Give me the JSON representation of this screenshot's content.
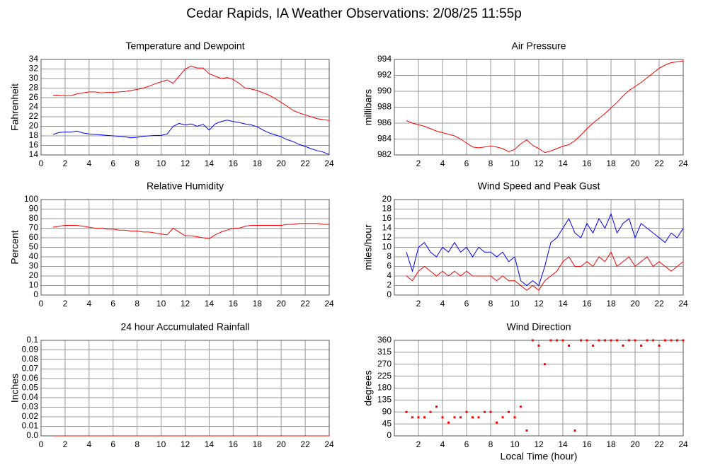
{
  "title": "Cedar Rapids, IA Weather Observations: 2/08/25 11:55p",
  "chart_data": [
    {
      "type": "line",
      "title": "Temperature and Dewpoint",
      "ylabel": "Fahrenheit",
      "x": [
        1,
        1.5,
        2,
        2.5,
        3,
        3.5,
        4,
        4.5,
        5,
        5.5,
        6,
        6.5,
        7,
        7.5,
        8,
        8.5,
        9,
        9.5,
        10,
        10.5,
        11,
        11.5,
        12,
        12.5,
        13,
        13.5,
        14,
        14.5,
        15,
        15.5,
        16,
        16.5,
        17,
        17.5,
        18,
        18.5,
        19,
        19.5,
        20,
        20.5,
        21,
        21.5,
        22,
        22.5,
        23,
        23.5,
        24
      ],
      "series": [
        {
          "color": "#ff0000",
          "values": [
            26.5,
            26.5,
            26.4,
            26.4,
            26.8,
            27.0,
            27.2,
            27.2,
            27.0,
            27.1,
            27.1,
            27.2,
            27.3,
            27.5,
            27.7,
            28.0,
            28.4,
            28.9,
            29.3,
            29.7,
            29.0,
            30.5,
            32.0,
            32.6,
            32.2,
            32.2,
            31.0,
            30.5,
            30.0,
            30.2,
            29.8,
            29.0,
            28.0,
            27.8,
            27.5,
            27.0,
            26.5,
            25.8,
            25.0,
            24.2,
            23.3,
            22.8,
            22.4,
            22.0,
            21.6,
            21.4,
            21.2
          ]
        },
        {
          "color": "#0000ff",
          "values": [
            18.3,
            18.7,
            18.8,
            18.8,
            19.0,
            18.6,
            18.4,
            18.3,
            18.2,
            18.1,
            18.0,
            17.9,
            17.8,
            17.6,
            17.7,
            17.9,
            18.0,
            18.1,
            18.1,
            18.4,
            20.0,
            20.6,
            20.3,
            20.5,
            20.0,
            20.4,
            19.2,
            20.5,
            21.0,
            21.3,
            21.0,
            20.8,
            20.5,
            20.3,
            19.9,
            19.2,
            18.6,
            18.2,
            17.8,
            17.2,
            16.8,
            16.2,
            15.8,
            15.3,
            14.9,
            14.6,
            14.1
          ]
        }
      ],
      "xlim": [
        0,
        24
      ],
      "xticks": [
        0,
        2,
        4,
        6,
        8,
        10,
        12,
        14,
        16,
        18,
        20,
        22,
        24
      ],
      "ylim": [
        14,
        34
      ],
      "yticks": [
        14,
        16,
        18,
        20,
        22,
        24,
        26,
        28,
        30,
        32,
        34
      ],
      "grid": true
    },
    {
      "type": "line",
      "title": "Air Pressure",
      "ylabel": "millibars",
      "x": [
        1,
        1.5,
        2,
        2.5,
        3,
        3.5,
        4,
        4.5,
        5,
        5.5,
        6,
        6.5,
        7,
        7.5,
        8,
        8.5,
        9,
        9.5,
        10,
        10.5,
        11,
        11.5,
        12,
        12.5,
        13,
        13.5,
        14,
        14.5,
        15,
        15.5,
        16,
        16.5,
        17,
        17.5,
        18,
        18.5,
        19,
        19.5,
        20,
        20.5,
        21,
        21.5,
        22,
        22.5,
        23,
        23.5,
        24
      ],
      "series": [
        {
          "color": "#ff0000",
          "values": [
            986.3,
            986.0,
            985.8,
            985.6,
            985.3,
            985.0,
            984.8,
            984.6,
            984.4,
            984.0,
            983.5,
            983.0,
            982.9,
            983.0,
            983.1,
            983.0,
            982.8,
            982.4,
            982.7,
            983.4,
            983.9,
            983.2,
            982.8,
            982.3,
            982.5,
            982.8,
            983.1,
            983.3,
            983.8,
            984.5,
            985.3,
            986.0,
            986.6,
            987.2,
            987.9,
            988.6,
            989.4,
            990.1,
            990.6,
            991.1,
            991.7,
            992.3,
            992.9,
            993.3,
            993.6,
            993.7,
            993.8
          ]
        }
      ],
      "xlim": [
        0,
        24
      ],
      "xticks": [
        2,
        4,
        6,
        8,
        10,
        12,
        14,
        16,
        18,
        20,
        22,
        24
      ],
      "ylim": [
        982,
        994
      ],
      "yticks": [
        982,
        984,
        986,
        988,
        990,
        992,
        994
      ],
      "grid": true
    },
    {
      "type": "line",
      "title": "Relative Humidity",
      "ylabel": "Percent",
      "x": [
        1,
        1.5,
        2,
        2.5,
        3,
        3.5,
        4,
        4.5,
        5,
        5.5,
        6,
        6.5,
        7,
        7.5,
        8,
        8.5,
        9,
        9.5,
        10,
        10.5,
        11,
        11.5,
        12,
        12.5,
        13,
        13.5,
        14,
        14.5,
        15,
        15.5,
        16,
        16.5,
        17,
        17.5,
        18,
        18.5,
        19,
        19.5,
        20,
        20.5,
        21,
        21.5,
        22,
        22.5,
        23,
        23.5,
        24
      ],
      "series": [
        {
          "color": "#ff0000",
          "values": [
            71,
            72,
            73,
            73,
            73,
            72,
            71,
            70,
            70,
            69,
            69,
            68,
            68,
            67,
            67,
            66,
            66,
            65,
            64,
            63,
            70,
            66,
            62,
            62,
            61,
            60,
            59,
            63,
            66,
            68,
            70,
            70,
            72,
            73,
            73,
            73,
            73,
            73,
            73,
            74,
            74,
            75,
            75,
            75,
            75,
            74,
            74
          ]
        }
      ],
      "xlim": [
        0,
        24
      ],
      "xticks": [
        0,
        2,
        4,
        6,
        8,
        10,
        12,
        14,
        16,
        18,
        20,
        22,
        24
      ],
      "ylim": [
        0,
        100
      ],
      "yticks": [
        0,
        10,
        20,
        30,
        40,
        50,
        60,
        70,
        80,
        90,
        100
      ],
      "grid": true
    },
    {
      "type": "line",
      "title": "Wind Speed and Peak Gust",
      "ylabel": "miles/hour",
      "x": [
        1,
        1.5,
        2,
        2.5,
        3,
        3.5,
        4,
        4.5,
        5,
        5.5,
        6,
        6.5,
        7,
        7.5,
        8,
        8.5,
        9,
        9.5,
        10,
        10.5,
        11,
        11.5,
        12,
        12.5,
        13,
        13.5,
        14,
        14.5,
        15,
        15.5,
        16,
        16.5,
        17,
        17.5,
        18,
        18.5,
        19,
        19.5,
        20,
        20.5,
        21,
        21.5,
        22,
        22.5,
        23,
        23.5,
        24
      ],
      "series": [
        {
          "color": "#0000ff",
          "values": [
            9,
            5,
            10,
            11,
            9,
            8,
            10,
            9,
            11,
            9,
            10,
            8,
            10,
            9,
            9,
            8,
            9,
            7,
            8,
            3,
            2,
            3,
            2,
            6,
            11,
            12,
            14,
            16,
            13,
            12,
            15,
            13,
            16,
            14,
            17,
            13,
            15,
            16,
            12,
            15,
            14,
            13,
            12,
            11,
            13,
            12,
            14
          ]
        },
        {
          "color": "#ff0000",
          "values": [
            4,
            3,
            5,
            6,
            5,
            4,
            5,
            4,
            5,
            4,
            5,
            4,
            4,
            4,
            4,
            3,
            4,
            3,
            3,
            2,
            1,
            2,
            1,
            3,
            4,
            5,
            7,
            8,
            6,
            6,
            7,
            6,
            8,
            7,
            9,
            6,
            7,
            8,
            6,
            7,
            8,
            6,
            7,
            6,
            5,
            6,
            7
          ]
        }
      ],
      "xlim": [
        0,
        24
      ],
      "xticks": [
        2,
        4,
        6,
        8,
        10,
        12,
        14,
        16,
        18,
        20,
        22,
        24
      ],
      "ylim": [
        0,
        20
      ],
      "yticks": [
        0,
        2,
        4,
        6,
        8,
        10,
        12,
        14,
        16,
        18,
        20
      ],
      "grid": true
    },
    {
      "type": "line",
      "title": "24 hour Accumulated Rainfall",
      "ylabel": "Inches",
      "x": [
        1,
        24
      ],
      "series": [
        {
          "color": "#ff0000",
          "values": [
            0,
            0
          ]
        }
      ],
      "xlim": [
        0,
        24
      ],
      "xticks": [
        0,
        2,
        4,
        6,
        8,
        10,
        12,
        14,
        16,
        18,
        20,
        22,
        24
      ],
      "ylim": [
        0,
        0.1
      ],
      "yticks": [
        {
          "value": 0,
          "label": "0.0"
        },
        0.01,
        0.02,
        0.03,
        0.04,
        0.05,
        0.06,
        0.07,
        0.08,
        0.09,
        0.1
      ],
      "grid": true
    },
    {
      "type": "scatter",
      "title": "Wind Direction",
      "ylabel": "degrees",
      "xlabel": "Local Time (hour)",
      "x": [
        1,
        1.5,
        2,
        2.5,
        3,
        3.5,
        4,
        4.5,
        5,
        5.5,
        6,
        6.5,
        7,
        7.5,
        8,
        8.5,
        9,
        9.5,
        10,
        10.5,
        11,
        11.5,
        12,
        12.5,
        13,
        13.5,
        14,
        14.5,
        15,
        15.5,
        16,
        16.5,
        17,
        17.5,
        18,
        18.5,
        19,
        19.5,
        20,
        20.5,
        21,
        21.5,
        22,
        22.5,
        23,
        23.5,
        24
      ],
      "series": [
        {
          "color": "#ff0000",
          "values": [
            90,
            70,
            70,
            70,
            90,
            110,
            70,
            50,
            70,
            70,
            90,
            70,
            70,
            90,
            90,
            50,
            70,
            90,
            70,
            110,
            20,
            360,
            340,
            270,
            360,
            360,
            360,
            340,
            20,
            360,
            360,
            340,
            360,
            360,
            360,
            360,
            340,
            360,
            360,
            340,
            360,
            360,
            340,
            360,
            360,
            360,
            360
          ]
        }
      ],
      "xlim": [
        0,
        24
      ],
      "xticks": [
        2,
        4,
        6,
        8,
        10,
        12,
        14,
        16,
        18,
        20,
        22,
        24
      ],
      "ylim": [
        0,
        360
      ],
      "yticks": [
        0,
        45,
        90,
        135,
        180,
        225,
        270,
        315,
        360
      ],
      "grid": true
    }
  ]
}
